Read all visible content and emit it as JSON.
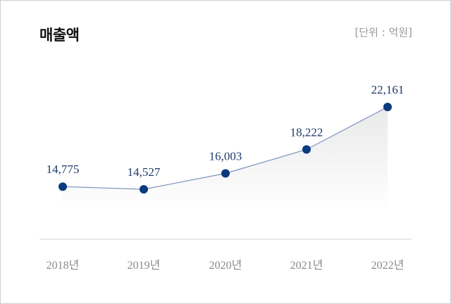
{
  "header": {
    "title": "매출액",
    "unit": "[단위 : 억원]"
  },
  "colors": {
    "line": "#7b93bd",
    "marker": "#0b3a7e",
    "value_label": "#1f3a68",
    "axis_label": "#8a8a8a",
    "axis_line": "#d0d0d0",
    "area_fill_top": "#ececec"
  },
  "chart_data": {
    "type": "line",
    "title": "매출액",
    "unit_label": "[단위 : 억원]",
    "categories": [
      "2018년",
      "2019년",
      "2020년",
      "2021년",
      "2022년"
    ],
    "series": [
      {
        "name": "매출액",
        "values": [
          14775,
          14527,
          16003,
          18222,
          22161
        ],
        "labels": [
          "14,775",
          "14,527",
          "16,003",
          "18,222",
          "22,161"
        ]
      }
    ],
    "xlabel": "",
    "ylabel": "",
    "grid": false,
    "legend": "none",
    "area_fill": true
  }
}
